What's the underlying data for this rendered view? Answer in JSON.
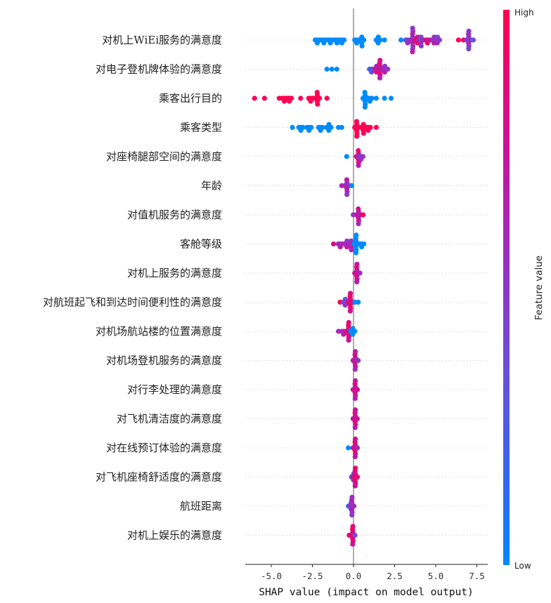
{
  "chart_data": {
    "type": "scatter",
    "subtype": "shap-beeswarm",
    "title": "",
    "xlabel": "SHAP value (impact on model output)",
    "ylabel": "",
    "xlim": [
      -6.6,
      8.0
    ],
    "xticks": [
      -5.0,
      -2.5,
      0.0,
      2.5,
      5.0,
      7.5
    ],
    "xtick_labels": [
      "-5.0",
      "-2.5",
      "0.0",
      "2.5",
      "5.0",
      "7.5"
    ],
    "grid": "horizontal dotted",
    "zero_line": 0.0,
    "colorbar": {
      "title": "Feature value",
      "high_label": "High",
      "low_label": "Low",
      "high_color": "#ff0052",
      "mid_color": "#8a2fbf",
      "low_color": "#008bfb",
      "position": "right"
    },
    "features": [
      {
        "name": "对机上WiEi服务的满意度",
        "clusters": [
          {
            "x": -2.2,
            "n": 2,
            "c": 0.0
          },
          {
            "x": -1.8,
            "n": 2,
            "c": 0.0
          },
          {
            "x": -1.4,
            "n": 2,
            "c": 0.0
          },
          {
            "x": -1.0,
            "n": 2,
            "c": 0.0
          },
          {
            "x": -0.7,
            "n": 2,
            "c": 0.0
          },
          {
            "x": 0.2,
            "n": 2,
            "c": 0.0
          },
          {
            "x": 0.5,
            "n": 4,
            "c": 0.0
          },
          {
            "x": 1.5,
            "n": 3,
            "c": 0.0
          },
          {
            "x": 1.9,
            "n": 1,
            "c": 0.0
          },
          {
            "x": 2.9,
            "n": 1,
            "c": 0.0
          },
          {
            "x": 3.3,
            "n": 2,
            "c": 0.4
          },
          {
            "x": 3.6,
            "n": 9,
            "c": 0.6
          },
          {
            "x": 3.9,
            "n": 3,
            "c": 0.9
          },
          {
            "x": 4.1,
            "n": 4,
            "c": 0.5
          },
          {
            "x": 4.5,
            "n": 2,
            "c": 0.8
          },
          {
            "x": 4.9,
            "n": 3,
            "c": 0.6
          },
          {
            "x": 5.1,
            "n": 3,
            "c": 0.5
          },
          {
            "x": 6.4,
            "n": 1,
            "c": 1.0
          },
          {
            "x": 6.7,
            "n": 1,
            "c": 0.9
          },
          {
            "x": 7.0,
            "n": 7,
            "c": 0.5
          },
          {
            "x": 7.3,
            "n": 1,
            "c": 0.3
          }
        ]
      },
      {
        "name": "对电子登机牌体验的满意度",
        "clusters": [
          {
            "x": -1.6,
            "n": 1,
            "c": 0.0
          },
          {
            "x": -1.3,
            "n": 1,
            "c": 0.0
          },
          {
            "x": -1.0,
            "n": 1,
            "c": 0.0
          },
          {
            "x": 1.1,
            "n": 2,
            "c": 0.2
          },
          {
            "x": 1.4,
            "n": 3,
            "c": 0.7
          },
          {
            "x": 1.6,
            "n": 7,
            "c": 0.8
          },
          {
            "x": 1.9,
            "n": 3,
            "c": 0.6
          },
          {
            "x": 2.1,
            "n": 1,
            "c": 0.5
          }
        ]
      },
      {
        "name": "乘客出行目的",
        "clusters": [
          {
            "x": -6.0,
            "n": 1,
            "c": 1.0
          },
          {
            "x": -5.4,
            "n": 1,
            "c": 1.0
          },
          {
            "x": -4.5,
            "n": 1,
            "c": 1.0
          },
          {
            "x": -4.2,
            "n": 2,
            "c": 1.0
          },
          {
            "x": -3.9,
            "n": 2,
            "c": 1.0
          },
          {
            "x": -3.2,
            "n": 1,
            "c": 1.0
          },
          {
            "x": -2.6,
            "n": 2,
            "c": 1.0
          },
          {
            "x": -2.2,
            "n": 5,
            "c": 1.0
          },
          {
            "x": -1.6,
            "n": 1,
            "c": 1.0
          },
          {
            "x": 0.7,
            "n": 6,
            "c": 0.0
          },
          {
            "x": 1.0,
            "n": 2,
            "c": 0.0
          },
          {
            "x": 1.4,
            "n": 1,
            "c": 0.0
          },
          {
            "x": 1.9,
            "n": 1,
            "c": 0.0
          },
          {
            "x": 2.3,
            "n": 1,
            "c": 0.0
          }
        ]
      },
      {
        "name": "乘客类型",
        "clusters": [
          {
            "x": -3.7,
            "n": 1,
            "c": 0.0
          },
          {
            "x": -3.2,
            "n": 2,
            "c": 0.0
          },
          {
            "x": -2.7,
            "n": 2,
            "c": 0.0
          },
          {
            "x": -2.0,
            "n": 2,
            "c": 0.0
          },
          {
            "x": -1.5,
            "n": 3,
            "c": 0.0
          },
          {
            "x": -0.9,
            "n": 1,
            "c": 0.0
          },
          {
            "x": -0.7,
            "n": 1,
            "c": 0.0
          },
          {
            "x": 0.2,
            "n": 6,
            "c": 1.0
          },
          {
            "x": 0.6,
            "n": 4,
            "c": 1.0
          },
          {
            "x": 0.9,
            "n": 2,
            "c": 1.0
          },
          {
            "x": 1.4,
            "n": 1,
            "c": 1.0
          }
        ]
      },
      {
        "name": "对座椅腿部空间的满意度",
        "clusters": [
          {
            "x": -0.4,
            "n": 1,
            "c": 0.0
          },
          {
            "x": 0.3,
            "n": 6,
            "c": 0.8
          },
          {
            "x": 0.45,
            "n": 2,
            "c": 0.5
          }
        ]
      },
      {
        "name": "年龄",
        "clusters": [
          {
            "x": -0.7,
            "n": 1,
            "c": 0.6
          },
          {
            "x": -0.4,
            "n": 6,
            "c": 0.6
          },
          {
            "x": -0.1,
            "n": 1,
            "c": 0.0
          }
        ]
      },
      {
        "name": "对值机服务的满意度",
        "clusters": [
          {
            "x": 0.0,
            "n": 1,
            "c": 0.5
          },
          {
            "x": 0.3,
            "n": 6,
            "c": 0.7
          },
          {
            "x": 0.6,
            "n": 1,
            "c": 1.0
          }
        ]
      },
      {
        "name": "客舱等级",
        "clusters": [
          {
            "x": -1.2,
            "n": 1,
            "c": 0.8
          },
          {
            "x": -0.8,
            "n": 2,
            "c": 0.6
          },
          {
            "x": -0.4,
            "n": 3,
            "c": 0.6
          },
          {
            "x": -0.15,
            "n": 4,
            "c": 0.6
          },
          {
            "x": 0.15,
            "n": 7,
            "c": 0.0
          },
          {
            "x": 0.5,
            "n": 2,
            "c": 0.0
          }
        ]
      },
      {
        "name": "对机上服务的满意度",
        "clusters": [
          {
            "x": 0.2,
            "n": 7,
            "c": 0.75
          },
          {
            "x": 0.4,
            "n": 1,
            "c": 0.6
          }
        ]
      },
      {
        "name": "对航班起飞和到达时间便利性的满意度",
        "clusters": [
          {
            "x": -0.8,
            "n": 1,
            "c": 1.0
          },
          {
            "x": -0.5,
            "n": 3,
            "c": 0.4
          },
          {
            "x": -0.2,
            "n": 7,
            "c": 0.85
          },
          {
            "x": 0.1,
            "n": 1,
            "c": 0.0
          },
          {
            "x": 0.3,
            "n": 1,
            "c": 0.0
          }
        ]
      },
      {
        "name": "对机场航站楼的位置满意度",
        "clusters": [
          {
            "x": -0.9,
            "n": 1,
            "c": 0.6
          },
          {
            "x": -0.6,
            "n": 2,
            "c": 0.6
          },
          {
            "x": -0.3,
            "n": 7,
            "c": 0.85
          },
          {
            "x": -0.05,
            "n": 3,
            "c": 0.0
          }
        ]
      },
      {
        "name": "对机场登机服务的满意度",
        "clusters": [
          {
            "x": 0.1,
            "n": 7,
            "c": 0.7
          },
          {
            "x": 0.3,
            "n": 1,
            "c": 0.5
          }
        ]
      },
      {
        "name": "对行李处理的满意度",
        "clusters": [
          {
            "x": 0.1,
            "n": 7,
            "c": 0.75
          },
          {
            "x": 0.25,
            "n": 1,
            "c": 0.8
          }
        ]
      },
      {
        "name": "对飞机清洁度的满意度",
        "clusters": [
          {
            "x": 0.1,
            "n": 7,
            "c": 0.75
          },
          {
            "x": 0.2,
            "n": 1,
            "c": 0.8
          }
        ]
      },
      {
        "name": "对在线预订体验的满意度",
        "clusters": [
          {
            "x": -0.3,
            "n": 1,
            "c": 0.0
          },
          {
            "x": 0.1,
            "n": 7,
            "c": 0.8
          },
          {
            "x": 0.25,
            "n": 1,
            "c": 0.6
          }
        ]
      },
      {
        "name": "对飞机座椅舒适度的满意度",
        "clusters": [
          {
            "x": 0.0,
            "n": 3,
            "c": 0.3
          },
          {
            "x": 0.1,
            "n": 7,
            "c": 0.85
          },
          {
            "x": 0.25,
            "n": 1,
            "c": 0.9
          }
        ]
      },
      {
        "name": "航班距离",
        "clusters": [
          {
            "x": -0.3,
            "n": 1,
            "c": 0.0
          },
          {
            "x": -0.15,
            "n": 3,
            "c": 0.2
          },
          {
            "x": -0.1,
            "n": 7,
            "c": 0.55
          }
        ]
      },
      {
        "name": "对机上娱乐的满意度",
        "clusters": [
          {
            "x": -0.25,
            "n": 1,
            "c": 0.9
          },
          {
            "x": -0.05,
            "n": 7,
            "c": 0.85
          },
          {
            "x": 0.1,
            "n": 1,
            "c": 0.4
          }
        ]
      }
    ]
  }
}
